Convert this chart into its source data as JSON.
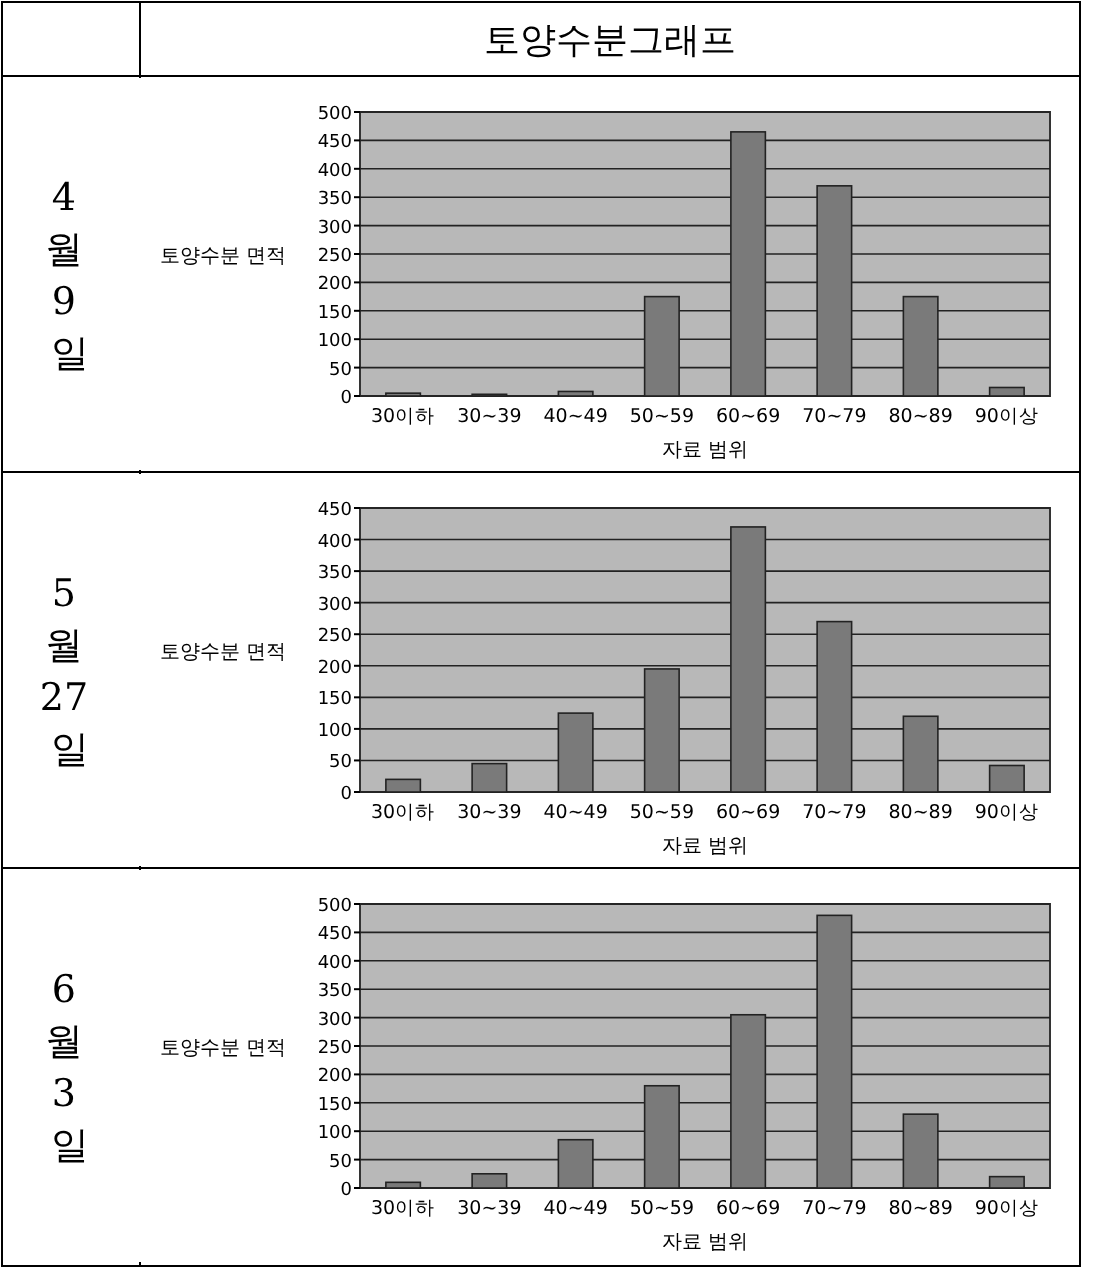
{
  "chart_data": [
    {
      "type": "bar",
      "title": "토양수분그래프",
      "annotations": [
        "4 월 9 일"
      ],
      "xlabel": "자료 범위",
      "ylabel": "토양수분 면적",
      "categories": [
        "30이하",
        "30~39",
        "40~49",
        "50~59",
        "60~69",
        "70~79",
        "80~89",
        "90이상"
      ],
      "values": [
        5,
        3,
        8,
        175,
        465,
        370,
        175,
        15
      ],
      "color": "#7a7a7a",
      "ylim": [
        0,
        500
      ],
      "yticks": [
        0,
        50,
        100,
        150,
        200,
        250,
        300,
        350,
        400,
        450,
        500
      ],
      "grid": "y"
    },
    {
      "type": "bar",
      "annotations": [
        "5 월 27 일"
      ],
      "xlabel": "자료 범위",
      "ylabel": "토양수분 면적",
      "categories": [
        "30이하",
        "30~39",
        "40~49",
        "50~59",
        "60~69",
        "70~79",
        "80~89",
        "90이상"
      ],
      "values": [
        20,
        45,
        125,
        195,
        420,
        270,
        120,
        42
      ],
      "color": "#7a7a7a",
      "ylim": [
        0,
        450
      ],
      "yticks": [
        0,
        50,
        100,
        150,
        200,
        250,
        300,
        350,
        400,
        450
      ],
      "grid": "y"
    },
    {
      "type": "bar",
      "annotations": [
        "6 월 3 일"
      ],
      "xlabel": "자료 범위",
      "ylabel": "토양수분 면적",
      "categories": [
        "30이하",
        "30~39",
        "40~49",
        "50~59",
        "60~69",
        "70~79",
        "80~89",
        "90이상"
      ],
      "values": [
        10,
        25,
        85,
        180,
        305,
        480,
        130,
        20
      ],
      "color": "#7a7a7a",
      "ylim": [
        0,
        500
      ],
      "yticks": [
        0,
        50,
        100,
        150,
        200,
        250,
        300,
        350,
        400,
        450,
        500
      ],
      "grid": "y"
    }
  ]
}
